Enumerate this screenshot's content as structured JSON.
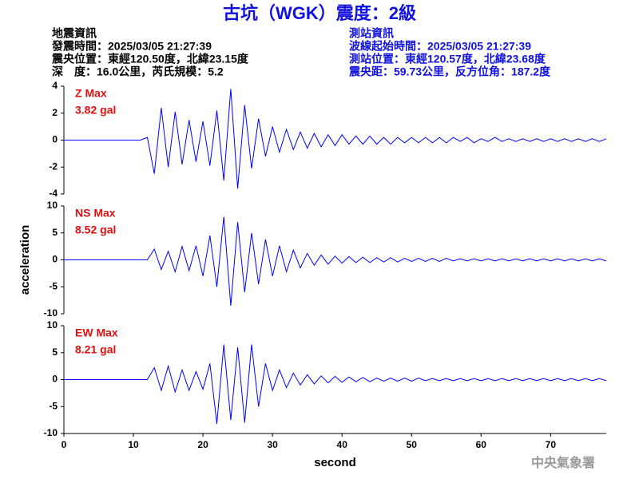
{
  "header": {
    "title": "古坑（WGK）震度：2級",
    "left": [
      "地震資訊",
      "發震時間：2025/03/05 21:27:39",
      "震央位置：東經120.50度，北緯23.15度",
      "深　度：16.0公里，芮氏規模：5.2"
    ],
    "right": [
      "測站資訊",
      "波線起始時間：2025/03/05 21:27:39",
      "測站位置：東經120.57度，北緯23.68度",
      "震央距：59.73公里，反方位角：187.2度"
    ]
  },
  "footer": "中央氣象署",
  "chart_data": [
    {
      "type": "line",
      "annotations": [
        "Z Max",
        "3.82 gal"
      ],
      "color": "#0000ff",
      "xlim": [
        0,
        78
      ],
      "ylim": [
        -4,
        4
      ],
      "yticks": [
        4,
        2,
        0,
        -2,
        -4
      ],
      "x": [
        0,
        1,
        2,
        3,
        4,
        5,
        6,
        7,
        8,
        9,
        10,
        11,
        12,
        13,
        14,
        15,
        16,
        17,
        18,
        19,
        20,
        21,
        22,
        23,
        24,
        25,
        26,
        27,
        28,
        29,
        30,
        31,
        32,
        33,
        34,
        35,
        36,
        37,
        38,
        39,
        40,
        41,
        42,
        43,
        44,
        45,
        46,
        47,
        48,
        49,
        50,
        51,
        52,
        53,
        54,
        55,
        56,
        57,
        58,
        59,
        60,
        61,
        62,
        63,
        64,
        65,
        66,
        67,
        68,
        69,
        70,
        71,
        72,
        73,
        74,
        75,
        76,
        77,
        78
      ],
      "values": [
        0,
        0,
        0,
        0,
        0,
        0,
        0,
        0,
        0,
        0,
        0,
        0,
        0.2,
        -2.5,
        2.4,
        -2.0,
        2.1,
        -1.8,
        1.5,
        -1.6,
        1.4,
        -1.9,
        2.2,
        -3.0,
        3.8,
        -3.6,
        2.6,
        -2.1,
        1.6,
        -1.2,
        1.0,
        -0.9,
        0.8,
        -0.7,
        0.6,
        -0.6,
        0.5,
        -0.5,
        0.4,
        -0.4,
        0.4,
        -0.3,
        0.3,
        -0.3,
        0.3,
        -0.3,
        0.2,
        -0.3,
        0.2,
        -0.2,
        0.2,
        -0.2,
        0.2,
        -0.2,
        0.2,
        -0.2,
        0.2,
        -0.1,
        0.2,
        -0.2,
        0.1,
        -0.1,
        0.2,
        -0.1,
        0.1,
        -0.1,
        0.1,
        -0.1,
        0.1,
        -0.1,
        0.1,
        -0.1,
        0.1,
        -0.1,
        0.1,
        -0.1,
        0.1,
        -0.1,
        0.1
      ]
    },
    {
      "type": "line",
      "annotations": [
        "NS Max",
        "8.52 gal"
      ],
      "ylabel": "acceleration",
      "color": "#0000ff",
      "xlim": [
        0,
        78
      ],
      "ylim": [
        -10,
        10
      ],
      "yticks": [
        10,
        5,
        0,
        -5,
        -10
      ],
      "x": [
        0,
        1,
        2,
        3,
        4,
        5,
        6,
        7,
        8,
        9,
        10,
        11,
        12,
        13,
        14,
        15,
        16,
        17,
        18,
        19,
        20,
        21,
        22,
        23,
        24,
        25,
        26,
        27,
        28,
        29,
        30,
        31,
        32,
        33,
        34,
        35,
        36,
        37,
        38,
        39,
        40,
        41,
        42,
        43,
        44,
        45,
        46,
        47,
        48,
        49,
        50,
        51,
        52,
        53,
        54,
        55,
        56,
        57,
        58,
        59,
        60,
        61,
        62,
        63,
        64,
        65,
        66,
        67,
        68,
        69,
        70,
        71,
        72,
        73,
        74,
        75,
        76,
        77,
        78
      ],
      "values": [
        0,
        0,
        0,
        0,
        0,
        0,
        0,
        0,
        0,
        0,
        0,
        0,
        0,
        2.0,
        -1.8,
        1.6,
        -2.2,
        2.5,
        -2.0,
        2.6,
        -3.0,
        4.5,
        -5.0,
        8.0,
        -8.5,
        7.0,
        -6.0,
        5.0,
        -4.5,
        3.8,
        -3.0,
        2.6,
        -2.2,
        1.8,
        -1.5,
        1.2,
        -1.0,
        0.9,
        -0.8,
        0.7,
        -0.6,
        0.6,
        -0.5,
        0.5,
        -0.5,
        0.4,
        -0.4,
        0.4,
        -0.4,
        0.3,
        -0.3,
        0.3,
        -0.3,
        0.3,
        -0.3,
        0.3,
        -0.2,
        0.2,
        -0.2,
        0.2,
        -0.2,
        0.2,
        -0.2,
        0.2,
        -0.2,
        0.2,
        -0.2,
        0.2,
        -0.2,
        0.2,
        -0.2,
        0.2,
        -0.2,
        0.2,
        -0.2,
        0.2,
        -0.2,
        0.2,
        -0.2
      ]
    },
    {
      "type": "line",
      "annotations": [
        "EW Max",
        "8.21 gal"
      ],
      "xlabel": "second",
      "color": "#0000ff",
      "xlim": [
        0,
        78
      ],
      "ylim": [
        -10,
        10
      ],
      "yticks": [
        10,
        5,
        0,
        -5,
        -10
      ],
      "xticks": [
        0,
        10,
        20,
        30,
        40,
        50,
        60,
        70
      ],
      "x": [
        0,
        1,
        2,
        3,
        4,
        5,
        6,
        7,
        8,
        9,
        10,
        11,
        12,
        13,
        14,
        15,
        16,
        17,
        18,
        19,
        20,
        21,
        22,
        23,
        24,
        25,
        26,
        27,
        28,
        29,
        30,
        31,
        32,
        33,
        34,
        35,
        36,
        37,
        38,
        39,
        40,
        41,
        42,
        43,
        44,
        45,
        46,
        47,
        48,
        49,
        50,
        51,
        52,
        53,
        54,
        55,
        56,
        57,
        58,
        59,
        60,
        61,
        62,
        63,
        64,
        65,
        66,
        67,
        68,
        69,
        70,
        71,
        72,
        73,
        74,
        75,
        76,
        77,
        78
      ],
      "values": [
        0,
        0,
        0,
        0,
        0,
        0,
        0,
        0,
        0,
        0,
        0,
        0,
        0,
        2.2,
        -2.0,
        2.5,
        -2.3,
        1.8,
        -2.0,
        1.5,
        -1.8,
        3.0,
        -8.2,
        6.5,
        -7.5,
        6.0,
        -8.0,
        6.5,
        -5.0,
        3.0,
        -2.0,
        1.8,
        -1.5,
        1.2,
        -1.0,
        0.9,
        -0.8,
        0.7,
        -0.6,
        0.6,
        -0.5,
        0.5,
        -0.4,
        0.4,
        -0.4,
        0.3,
        -0.3,
        0.3,
        -0.3,
        0.3,
        -0.3,
        0.3,
        -0.2,
        0.2,
        -0.2,
        0.2,
        -0.2,
        0.2,
        -0.2,
        0.2,
        -0.2,
        0.2,
        -0.2,
        0.2,
        -0.2,
        0.2,
        -0.2,
        0.2,
        -0.2,
        0.2,
        -0.2,
        0.2,
        -0.2,
        0.2,
        -0.2,
        0.2,
        -0.2,
        0.2,
        -0.2
      ]
    }
  ]
}
